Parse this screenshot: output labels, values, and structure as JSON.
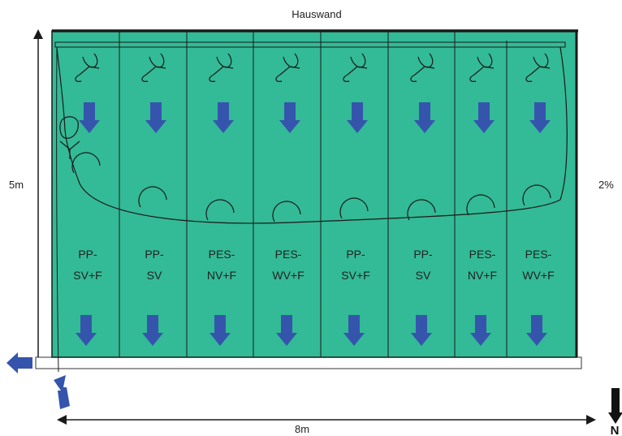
{
  "labels": {
    "top": "Hauswand",
    "height": "5m",
    "width": "8m",
    "slope": "2%",
    "north": "N"
  },
  "strips": [
    {
      "line1": "PP-",
      "line2": "SV+F"
    },
    {
      "line1": "PP-",
      "line2": "SV"
    },
    {
      "line1": "PES-",
      "line2": "NV+F"
    },
    {
      "line1": "PES-",
      "line2": "WV+F"
    },
    {
      "line1": "PP-",
      "line2": "SV+F"
    },
    {
      "line1": "PP-",
      "line2": "SV"
    },
    {
      "line1": "PES-",
      "line2": "NV+F"
    },
    {
      "line1": "PES-",
      "line2": "WV+F"
    }
  ],
  "colors": {
    "fill": "#33ba96",
    "arrow": "#3555ad",
    "line": "#1a1a1a"
  }
}
